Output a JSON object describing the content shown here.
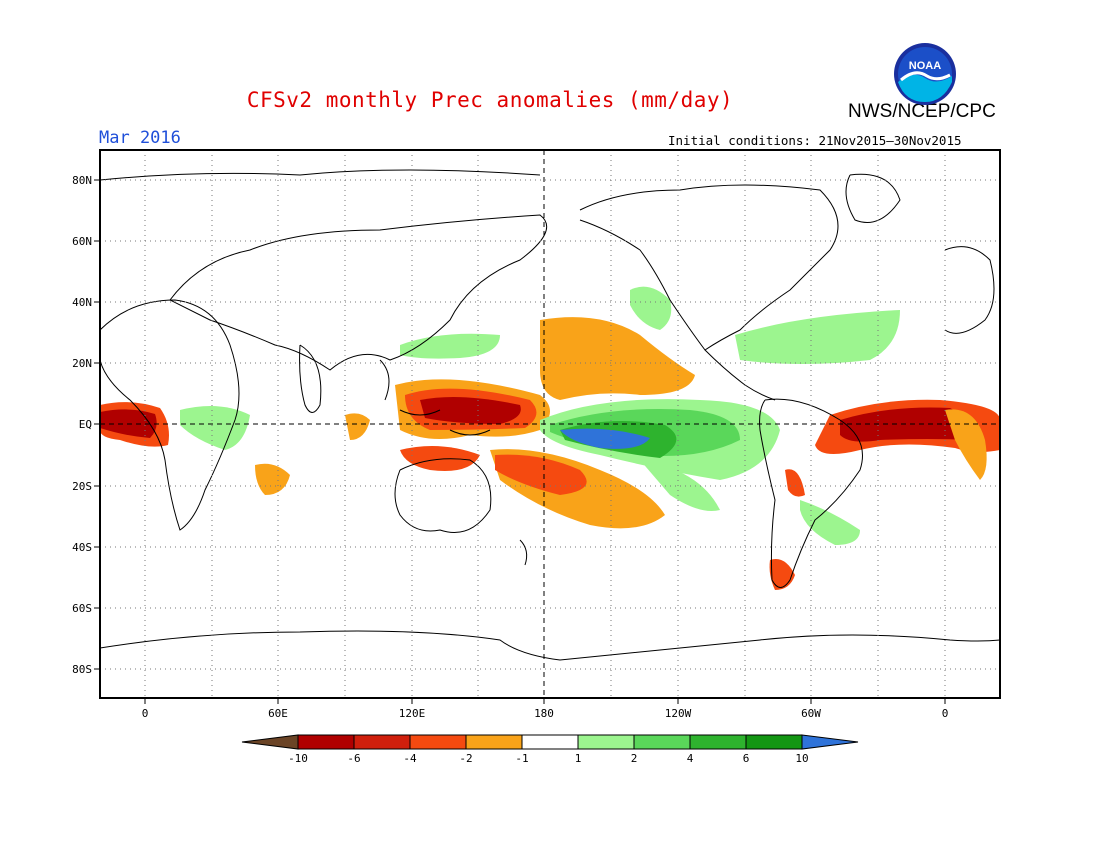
{
  "title": "CFSv2 monthly Prec anomalies (mm/day)",
  "agency": "NWS/NCEP/CPC",
  "logo_text": "NOAA",
  "target_month": "Mar 2016",
  "initial_conditions": "Initial conditions: 21Nov2015–30Nov2015",
  "map": {
    "lat_labels": [
      "80N",
      "60N",
      "40N",
      "20N",
      "EQ",
      "20S",
      "40S",
      "60S",
      "80S"
    ],
    "lon_labels": [
      "0",
      "60E",
      "120E",
      "180",
      "120W",
      "60W",
      "0"
    ],
    "grid": "dotted every 20° lat / 30° lon",
    "reference_lines": [
      "Equator (dashed)",
      "180° meridian (dashed)"
    ]
  },
  "colorbar": {
    "labels": [
      "-10",
      "-6",
      "-4",
      "-2",
      "-1",
      "1",
      "2",
      "4",
      "6",
      "10"
    ],
    "colors": [
      "#6b4426",
      "#b00000",
      "#d01f0c",
      "#f54a10",
      "#f9a319",
      "#ffffff",
      "#9cf58f",
      "#5ad75a",
      "#2eb32e",
      "#139613",
      "#2f73d9"
    ],
    "ends": "triangular arrows"
  },
  "colors": {
    "title": "#e00000",
    "month": "#1f4fd9",
    "strong_dry": "#b00000",
    "dry": "#f54a10",
    "weak_dry": "#f9a319",
    "weak_wet": "#9cf58f",
    "wet": "#5ad75a",
    "strong_wet": "#2eb32e",
    "very_wet": "#2f73d9"
  }
}
